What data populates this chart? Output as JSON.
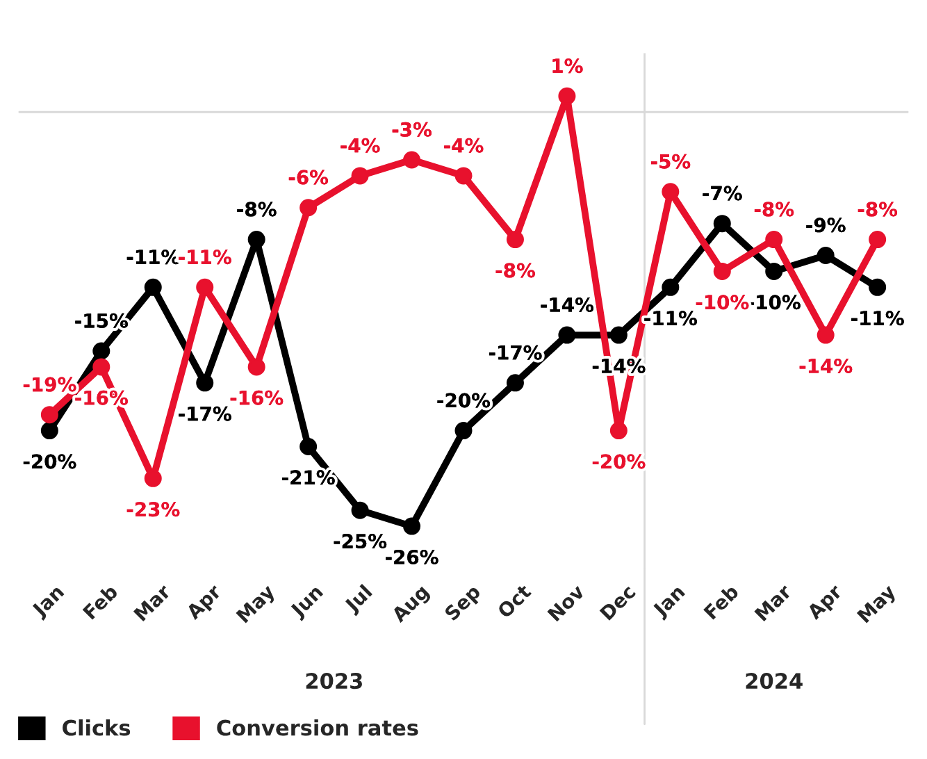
{
  "chart_data": {
    "type": "line",
    "categories": [
      "Jan",
      "Feb",
      "Mar",
      "Apr",
      "May",
      "Jun",
      "Jul",
      "Aug",
      "Sep",
      "Oct",
      "Nov",
      "Dec",
      "Jan",
      "Feb",
      "Mar",
      "Apr",
      "May"
    ],
    "series": [
      {
        "name": "Clicks",
        "color": "#000000",
        "values": [
          -20,
          -15,
          -11,
          -17,
          -8,
          -21,
          -25,
          -26,
          -20,
          -17,
          -14,
          -14,
          -11,
          -7,
          -10,
          -9,
          -11
        ],
        "value_labels": [
          "-20%",
          "-15%",
          "-11%",
          "-17%",
          "-8%",
          "-21%",
          "-25%",
          "-26%",
          "-20%",
          "-17%",
          "-14%",
          "-14%",
          "-11%",
          "-7%",
          "-10%",
          "-9%",
          "-11%"
        ]
      },
      {
        "name": "Conversion rates",
        "color": "#e8112d",
        "values": [
          -19,
          -16,
          -23,
          -11,
          -16,
          -6,
          -4,
          -3,
          -4,
          -8,
          1,
          -20,
          -5,
          -10,
          -8,
          -14,
          -8
        ],
        "value_labels": [
          "-19%",
          "-16%",
          "-23%",
          "-11%",
          "-16%",
          "-6%",
          "-4%",
          "-3%",
          "-4%",
          "-8%",
          "1%",
          "-20%",
          "-5%",
          "-10%",
          "-8%",
          "-14%",
          "-8%"
        ]
      }
    ],
    "marker": "circle",
    "line_style": "solid",
    "grid": false,
    "legend": "bottom left",
    "ref_lines": [
      {
        "axis": "y",
        "value": 0,
        "color": "#d9d9d9"
      }
    ],
    "annotations": [
      "2023",
      "2024"
    ]
  }
}
